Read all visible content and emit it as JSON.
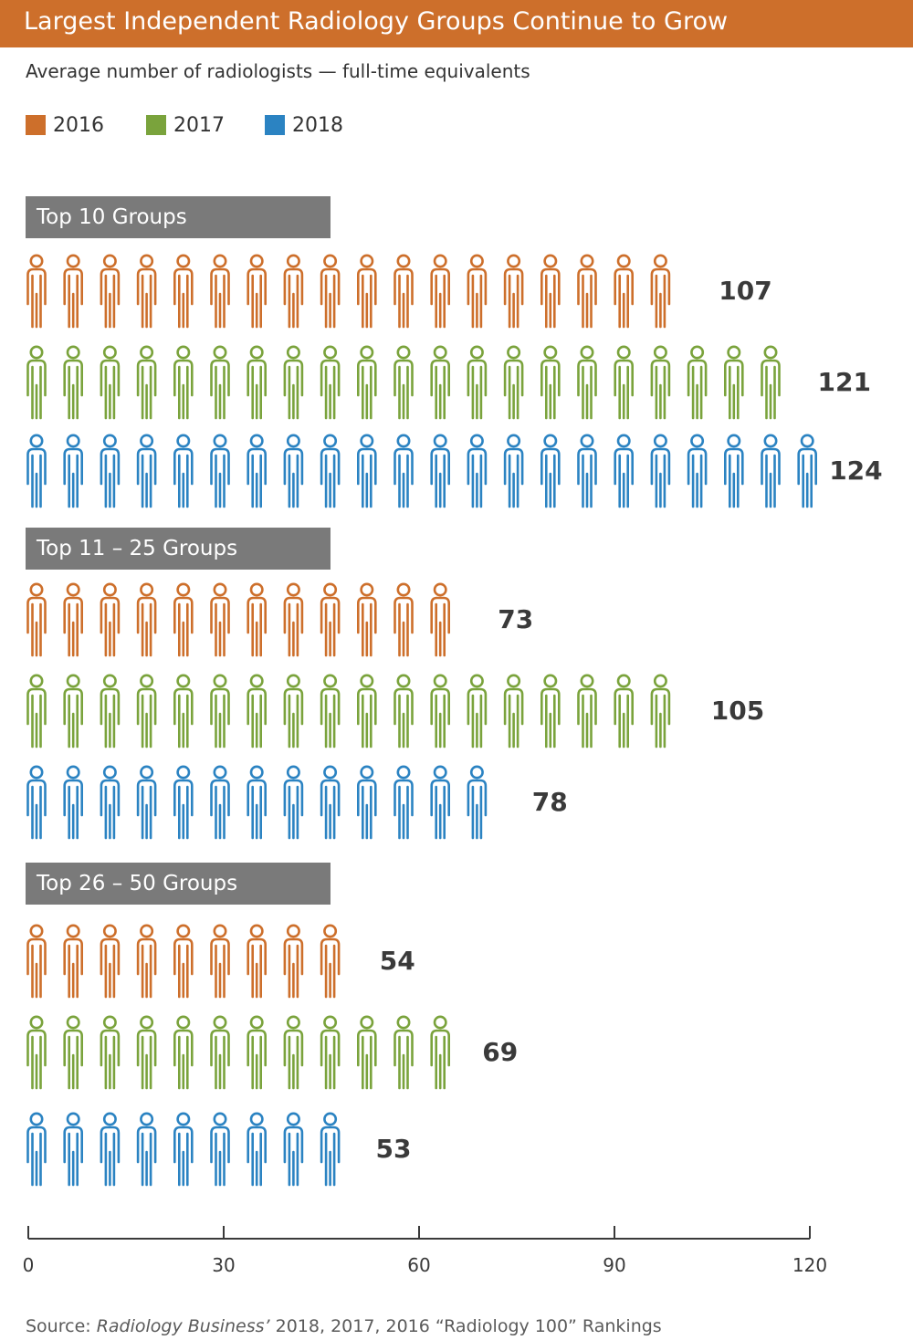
{
  "title": "Largest Independent Radiology Groups Continue to Grow",
  "subtitle": "Average number of radiologists — full-time equivalents",
  "colors": {
    "banner": "#cd6f2b",
    "header": "#7a7a7a",
    "2016": "#cd6f2b",
    "2017": "#7aa33c",
    "2018": "#2b83c2"
  },
  "legend": [
    {
      "label": "2016",
      "color": "#cd6f2b"
    },
    {
      "label": "2017",
      "color": "#7aa33c"
    },
    {
      "label": "2018",
      "color": "#2b83c2"
    }
  ],
  "source": {
    "prefix": "Source: ",
    "publication": "Radiology Business’",
    "rest": " 2018, 2017, 2016 “Radiology 100” Rankings"
  },
  "chart_data": {
    "type": "bar",
    "icon": "person-icon",
    "title": "Largest Independent Radiology Groups Continue to Grow",
    "subtitle": "Average number of radiologists — full-time equivalents",
    "categories": [
      "Top 10 Groups",
      "Top 11 – 25 Groups",
      "Top 26 – 50 Groups"
    ],
    "series": [
      {
        "name": "2016",
        "values": [
          107,
          73,
          54
        ]
      },
      {
        "name": "2017",
        "values": [
          121,
          105,
          69
        ]
      },
      {
        "name": "2018",
        "values": [
          124,
          78,
          53
        ]
      }
    ],
    "xlim": [
      0,
      120
    ],
    "xticks": [
      0,
      30,
      60,
      90,
      120
    ],
    "grid": false,
    "legend_position": "top-left"
  }
}
